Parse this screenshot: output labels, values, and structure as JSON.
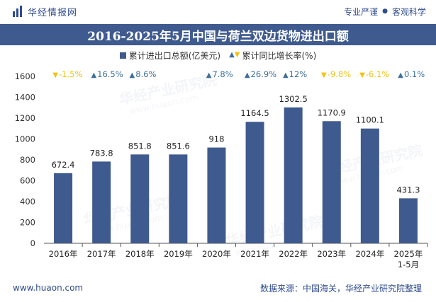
{
  "header": {
    "brand_name": "华经情报网",
    "slogan_left": "专业严谨",
    "slogan_dot": "●",
    "slogan_right": "客观科学"
  },
  "watermark": {
    "text": "华经产业研究院",
    "url": "www.huaon.com"
  },
  "footer": {
    "website": "www.huaon.com",
    "source": "数据来源：中国海关，华经产业研究院整理"
  },
  "colors": {
    "bar": "#3f5a8e",
    "up": "#3f6f9a",
    "down": "#f1c40f",
    "brand": "#2f4b8f"
  },
  "chart_data": {
    "type": "bar",
    "title": "2016-2025年5月中国与荷兰双边货物进出口额",
    "categories": [
      "2016年",
      "2017年",
      "2018年",
      "2019年",
      "2020年",
      "2021年",
      "2022年",
      "2023年",
      "2024年",
      "2025年 1-5月"
    ],
    "series": [
      {
        "name": "累计进出口总额(亿美元)",
        "values": [
          672.4,
          783.8,
          851.8,
          851.6,
          918,
          1164.5,
          1302.5,
          1170.9,
          1100.1,
          431.3
        ],
        "labels": [
          "672.4",
          "783.8",
          "851.8",
          "851.6",
          "918",
          "1164.5",
          "1302.5",
          "1170.9",
          "1100.1",
          "431.3"
        ]
      },
      {
        "name": "累计同比增长率(%)",
        "values": [
          -1.5,
          16.5,
          8.6,
          null,
          7.8,
          26.9,
          12,
          -9.8,
          -6.1,
          0.1
        ],
        "labels": [
          "-1.5%",
          "16.5%",
          "8.6%",
          "",
          "7.8%",
          "26.9%",
          "12%",
          "-9.8%",
          "-6.1%",
          "0.1%"
        ]
      }
    ],
    "ylim": [
      0,
      1600
    ],
    "yticks": [
      0,
      200,
      400,
      600,
      800,
      1000,
      1200,
      1400,
      1600
    ],
    "grid": false,
    "legend": "top"
  }
}
